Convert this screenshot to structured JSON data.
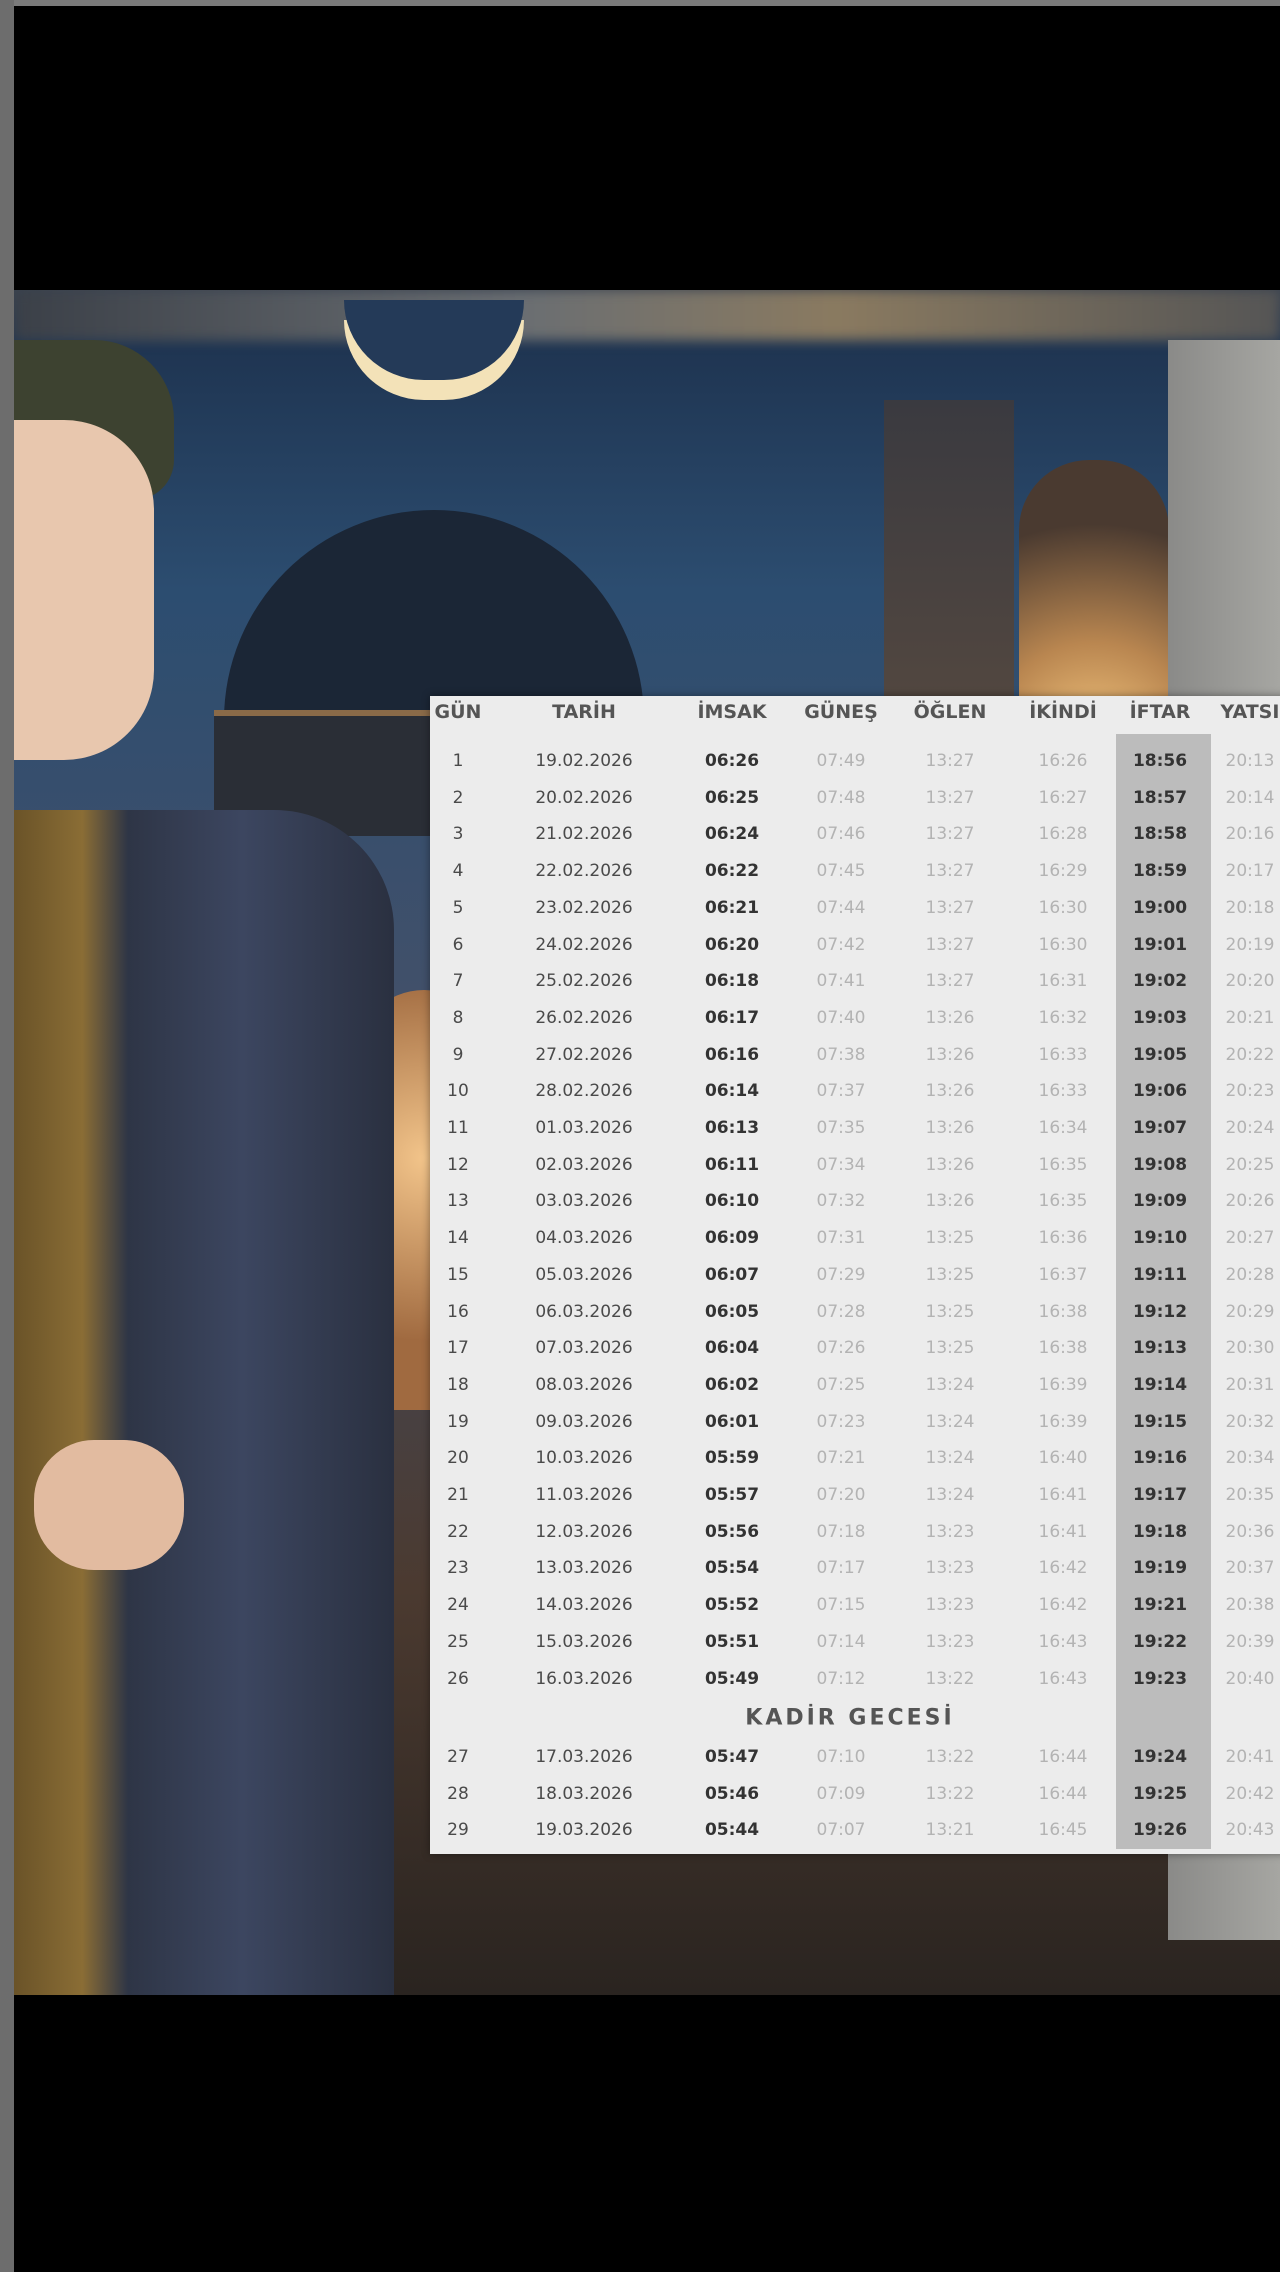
{
  "table": {
    "headers": [
      "GÜN",
      "TARİH",
      "İMSAK",
      "GÜNEŞ",
      "ÖĞLEN",
      "İKİNDİ",
      "İFTAR",
      "YATSI"
    ],
    "rows": [
      [
        "1",
        "19.02.2026",
        "06:26",
        "07:49",
        "13:27",
        "16:26",
        "18:56",
        "20:13"
      ],
      [
        "2",
        "20.02.2026",
        "06:25",
        "07:48",
        "13:27",
        "16:27",
        "18:57",
        "20:14"
      ],
      [
        "3",
        "21.02.2026",
        "06:24",
        "07:46",
        "13:27",
        "16:28",
        "18:58",
        "20:16"
      ],
      [
        "4",
        "22.02.2026",
        "06:22",
        "07:45",
        "13:27",
        "16:29",
        "18:59",
        "20:17"
      ],
      [
        "5",
        "23.02.2026",
        "06:21",
        "07:44",
        "13:27",
        "16:30",
        "19:00",
        "20:18"
      ],
      [
        "6",
        "24.02.2026",
        "06:20",
        "07:42",
        "13:27",
        "16:30",
        "19:01",
        "20:19"
      ],
      [
        "7",
        "25.02.2026",
        "06:18",
        "07:41",
        "13:27",
        "16:31",
        "19:02",
        "20:20"
      ],
      [
        "8",
        "26.02.2026",
        "06:17",
        "07:40",
        "13:26",
        "16:32",
        "19:03",
        "20:21"
      ],
      [
        "9",
        "27.02.2026",
        "06:16",
        "07:38",
        "13:26",
        "16:33",
        "19:05",
        "20:22"
      ],
      [
        "10",
        "28.02.2026",
        "06:14",
        "07:37",
        "13:26",
        "16:33",
        "19:06",
        "20:23"
      ],
      [
        "11",
        "01.03.2026",
        "06:13",
        "07:35",
        "13:26",
        "16:34",
        "19:07",
        "20:24"
      ],
      [
        "12",
        "02.03.2026",
        "06:11",
        "07:34",
        "13:26",
        "16:35",
        "19:08",
        "20:25"
      ],
      [
        "13",
        "03.03.2026",
        "06:10",
        "07:32",
        "13:26",
        "16:35",
        "19:09",
        "20:26"
      ],
      [
        "14",
        "04.03.2026",
        "06:09",
        "07:31",
        "13:25",
        "16:36",
        "19:10",
        "20:27"
      ],
      [
        "15",
        "05.03.2026",
        "06:07",
        "07:29",
        "13:25",
        "16:37",
        "19:11",
        "20:28"
      ],
      [
        "16",
        "06.03.2026",
        "06:05",
        "07:28",
        "13:25",
        "16:38",
        "19:12",
        "20:29"
      ],
      [
        "17",
        "07.03.2026",
        "06:04",
        "07:26",
        "13:25",
        "16:38",
        "19:13",
        "20:30"
      ],
      [
        "18",
        "08.03.2026",
        "06:02",
        "07:25",
        "13:24",
        "16:39",
        "19:14",
        "20:31"
      ],
      [
        "19",
        "09.03.2026",
        "06:01",
        "07:23",
        "13:24",
        "16:39",
        "19:15",
        "20:32"
      ],
      [
        "20",
        "10.03.2026",
        "05:59",
        "07:21",
        "13:24",
        "16:40",
        "19:16",
        "20:34"
      ],
      [
        "21",
        "11.03.2026",
        "05:57",
        "07:20",
        "13:24",
        "16:41",
        "19:17",
        "20:35"
      ],
      [
        "22",
        "12.03.2026",
        "05:56",
        "07:18",
        "13:23",
        "16:41",
        "19:18",
        "20:36"
      ],
      [
        "23",
        "13.03.2026",
        "05:54",
        "07:17",
        "13:23",
        "16:42",
        "19:19",
        "20:37"
      ],
      [
        "24",
        "14.03.2026",
        "05:52",
        "07:15",
        "13:23",
        "16:42",
        "19:21",
        "20:38"
      ],
      [
        "25",
        "15.03.2026",
        "05:51",
        "07:14",
        "13:23",
        "16:43",
        "19:22",
        "20:39"
      ],
      [
        "26",
        "16.03.2026",
        "05:49",
        "07:12",
        "13:22",
        "16:43",
        "19:23",
        "20:40"
      ]
    ],
    "section": {
      "title": "KADİR GECESİ",
      "rows": [
        [
          "27",
          "17.03.2026",
          "05:47",
          "07:10",
          "13:22",
          "16:44",
          "19:24",
          "20:41"
        ],
        [
          "28",
          "18.03.2026",
          "05:46",
          "07:09",
          "13:22",
          "16:44",
          "19:25",
          "20:42"
        ],
        [
          "29",
          "19.03.2026",
          "05:44",
          "07:07",
          "13:21",
          "16:45",
          "19:26",
          "20:43"
        ]
      ]
    }
  }
}
